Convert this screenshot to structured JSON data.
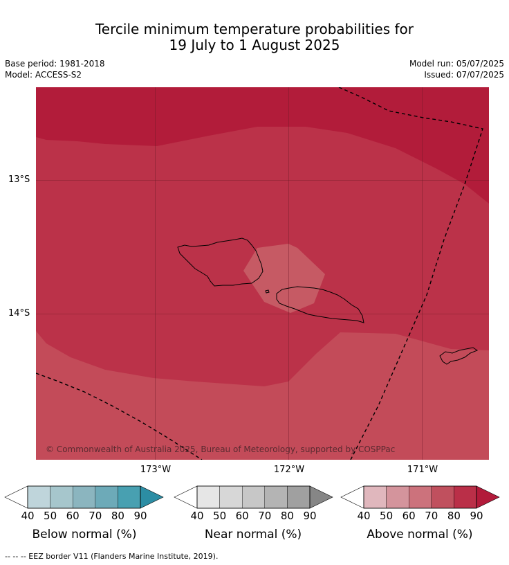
{
  "title": {
    "line1": "Tercile minimum temperature probabilities for",
    "line2": "19 July to 1 August 2025"
  },
  "meta": {
    "base_period": "Base period: 1981-2018",
    "model": "Model: ACCESS-S2",
    "model_run": "Model run: 05/07/2025",
    "issued": "Issued: 07/07/2025"
  },
  "map": {
    "lat_labels": [
      "13°S",
      "14°S"
    ],
    "lon_labels": [
      "173°W",
      "172°W",
      "171°W"
    ],
    "copyright": "© Commonwealth of Australia 2025, Bureau of Meteorology, supported by COSPPac",
    "colors": {
      "above_90": "#b21c3a",
      "above_80": "#bb3249",
      "above_70": "#c34b59",
      "above_60_patch": "#c65a64"
    }
  },
  "colorbars": [
    {
      "name": "below",
      "title": "Below normal (%)",
      "ticks": [
        "40",
        "50",
        "60",
        "70",
        "80",
        "90"
      ],
      "colors": [
        "#ffffff",
        "#bfd5db",
        "#a6c6cc",
        "#8bb5bf",
        "#6daab8",
        "#48a0b1",
        "#2c8da4"
      ]
    },
    {
      "name": "near",
      "title": "Near normal (%)",
      "ticks": [
        "40",
        "50",
        "60",
        "70",
        "80",
        "90"
      ],
      "colors": [
        "#ffffff",
        "#e6e6e6",
        "#d7d7d7",
        "#c7c7c7",
        "#b4b4b4",
        "#a0a0a0",
        "#868686"
      ]
    },
    {
      "name": "above",
      "title": "Above normal (%)",
      "ticks": [
        "40",
        "50",
        "60",
        "70",
        "80",
        "90"
      ],
      "colors": [
        "#ffffff",
        "#e0b7bd",
        "#d4949c",
        "#cc727c",
        "#c0505e",
        "#ba2f48",
        "#b21a3a"
      ]
    }
  ],
  "legend": {
    "eez": "--  --  -- EEZ border V11 (Flanders Marine Institute, 2019)."
  }
}
